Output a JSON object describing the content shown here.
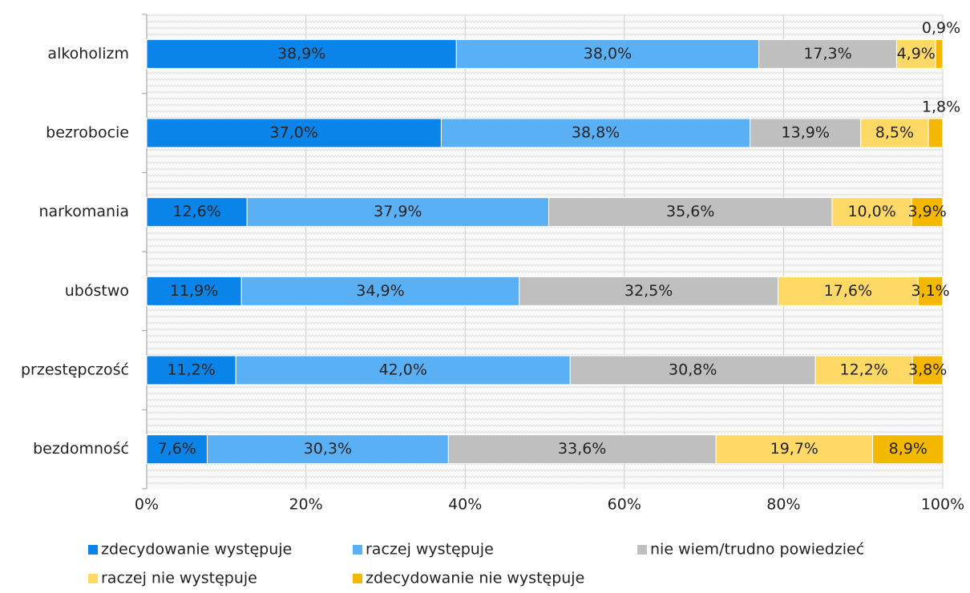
{
  "chart_data": {
    "type": "stacked_bar_horizontal",
    "categories": [
      "alkoholizm",
      "bezrobocie",
      "narkomania",
      "ubóstwo",
      "przestępczość",
      "bezdomność"
    ],
    "series": [
      {
        "name": "zdecydowanie występuje",
        "color": "#0a84e8",
        "values": [
          38.9,
          37.0,
          12.6,
          11.9,
          11.2,
          7.6
        ],
        "value_labels": [
          "38,9%",
          "37,0%",
          "12,6%",
          "11,9%",
          "11,2%",
          "7,6%"
        ]
      },
      {
        "name": "raczej występuje",
        "color": "#5ab0f5",
        "values": [
          38.0,
          38.8,
          37.9,
          34.9,
          42.0,
          30.3
        ],
        "value_labels": [
          "38,0%",
          "38,8%",
          "37,9%",
          "34,9%",
          "42,0%",
          "30,3%"
        ]
      },
      {
        "name": "nie wiem/trudno powiedzieć",
        "color": "#bfbfbf",
        "values": [
          17.3,
          13.9,
          35.6,
          32.5,
          30.8,
          33.6
        ],
        "value_labels": [
          "17,3%",
          "13,9%",
          "35,6%",
          "32,5%",
          "30,8%",
          "33,6%"
        ]
      },
      {
        "name": "raczej nie występuje",
        "color": "#ffd966",
        "values": [
          4.9,
          8.5,
          10.0,
          17.6,
          12.2,
          19.7
        ],
        "value_labels": [
          "4,9%",
          "8,5%",
          "10,0%",
          "17,6%",
          "12,2%",
          "19,7%"
        ]
      },
      {
        "name": "zdecydowanie nie występuje",
        "color": "#f5b800",
        "values": [
          0.9,
          1.8,
          3.9,
          3.1,
          3.8,
          8.9
        ],
        "value_labels": [
          "0,9%",
          "1,8%",
          "3,9%",
          "3,1%",
          "3,8%",
          "8,9%"
        ]
      }
    ],
    "xlim": [
      0,
      100
    ],
    "xticks": [
      {
        "value": 0,
        "label": "0%"
      },
      {
        "value": 20,
        "label": "20%"
      },
      {
        "value": 40,
        "label": "40%"
      },
      {
        "value": 60,
        "label": "60%"
      },
      {
        "value": 80,
        "label": "80%"
      },
      {
        "value": 100,
        "label": "100%"
      }
    ],
    "grid": true,
    "legend": "bottom"
  }
}
